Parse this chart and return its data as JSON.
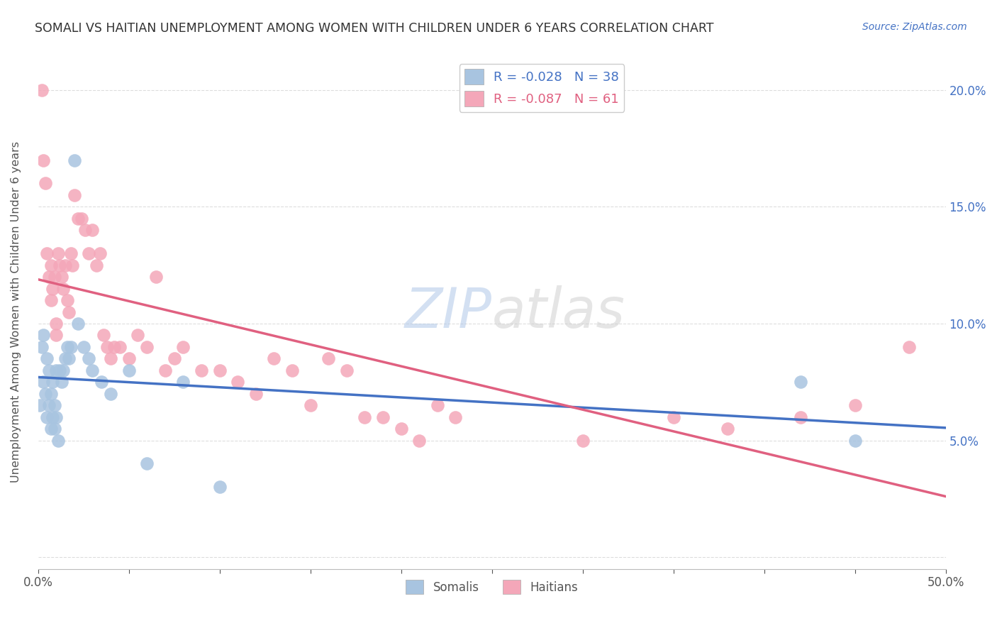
{
  "title": "SOMALI VS HAITIAN UNEMPLOYMENT AMONG WOMEN WITH CHILDREN UNDER 6 YEARS CORRELATION CHART",
  "source": "Source: ZipAtlas.com",
  "ylabel": "Unemployment Among Women with Children Under 6 years",
  "xlim": [
    0.0,
    0.5
  ],
  "ylim": [
    -0.005,
    0.215
  ],
  "xticks": [
    0.0,
    0.05,
    0.1,
    0.15,
    0.2,
    0.25,
    0.3,
    0.35,
    0.4,
    0.45,
    0.5
  ],
  "xtick_labels_show": [
    "0.0%",
    "",
    "",
    "",
    "",
    "",
    "",
    "",
    "",
    "",
    "50.0%"
  ],
  "yticks": [
    0.0,
    0.05,
    0.1,
    0.15,
    0.2
  ],
  "ytick_labels": [
    "",
    "5.0%",
    "10.0%",
    "15.0%",
    "20.0%"
  ],
  "watermark": "ZIPatlas",
  "somali_R": -0.028,
  "somali_N": 38,
  "haitian_R": -0.087,
  "haitian_N": 61,
  "somali_color": "#a8c4e0",
  "haitian_color": "#f4a7b9",
  "somali_line_color": "#4472c4",
  "haitian_line_color": "#e06080",
  "somali_x": [
    0.001,
    0.002,
    0.003,
    0.003,
    0.004,
    0.005,
    0.005,
    0.006,
    0.006,
    0.007,
    0.007,
    0.008,
    0.008,
    0.009,
    0.009,
    0.01,
    0.01,
    0.011,
    0.012,
    0.013,
    0.014,
    0.015,
    0.016,
    0.017,
    0.018,
    0.02,
    0.022,
    0.025,
    0.028,
    0.03,
    0.035,
    0.04,
    0.05,
    0.06,
    0.08,
    0.1,
    0.42,
    0.45
  ],
  "somali_y": [
    0.065,
    0.09,
    0.095,
    0.075,
    0.07,
    0.085,
    0.06,
    0.08,
    0.065,
    0.07,
    0.055,
    0.06,
    0.075,
    0.065,
    0.055,
    0.08,
    0.06,
    0.05,
    0.08,
    0.075,
    0.08,
    0.085,
    0.09,
    0.085,
    0.09,
    0.17,
    0.1,
    0.09,
    0.085,
    0.08,
    0.075,
    0.07,
    0.08,
    0.04,
    0.075,
    0.03,
    0.075,
    0.05
  ],
  "haitian_x": [
    0.002,
    0.003,
    0.004,
    0.005,
    0.006,
    0.007,
    0.007,
    0.008,
    0.009,
    0.01,
    0.01,
    0.011,
    0.012,
    0.013,
    0.014,
    0.015,
    0.016,
    0.017,
    0.018,
    0.019,
    0.02,
    0.022,
    0.024,
    0.026,
    0.028,
    0.03,
    0.032,
    0.034,
    0.036,
    0.038,
    0.04,
    0.042,
    0.045,
    0.05,
    0.055,
    0.06,
    0.065,
    0.07,
    0.075,
    0.08,
    0.09,
    0.1,
    0.11,
    0.12,
    0.13,
    0.14,
    0.15,
    0.16,
    0.17,
    0.18,
    0.19,
    0.2,
    0.21,
    0.22,
    0.23,
    0.3,
    0.35,
    0.38,
    0.42,
    0.45,
    0.48
  ],
  "haitian_y": [
    0.2,
    0.17,
    0.16,
    0.13,
    0.12,
    0.125,
    0.11,
    0.115,
    0.12,
    0.1,
    0.095,
    0.13,
    0.125,
    0.12,
    0.115,
    0.125,
    0.11,
    0.105,
    0.13,
    0.125,
    0.155,
    0.145,
    0.145,
    0.14,
    0.13,
    0.14,
    0.125,
    0.13,
    0.095,
    0.09,
    0.085,
    0.09,
    0.09,
    0.085,
    0.095,
    0.09,
    0.12,
    0.08,
    0.085,
    0.09,
    0.08,
    0.08,
    0.075,
    0.07,
    0.085,
    0.08,
    0.065,
    0.085,
    0.08,
    0.06,
    0.06,
    0.055,
    0.05,
    0.065,
    0.06,
    0.05,
    0.06,
    0.055,
    0.06,
    0.065,
    0.09
  ],
  "background_color": "#ffffff",
  "grid_color": "#dddddd",
  "title_color": "#333333",
  "right_ytick_color": "#4472c4",
  "figsize": [
    14.06,
    8.92
  ],
  "dpi": 100
}
